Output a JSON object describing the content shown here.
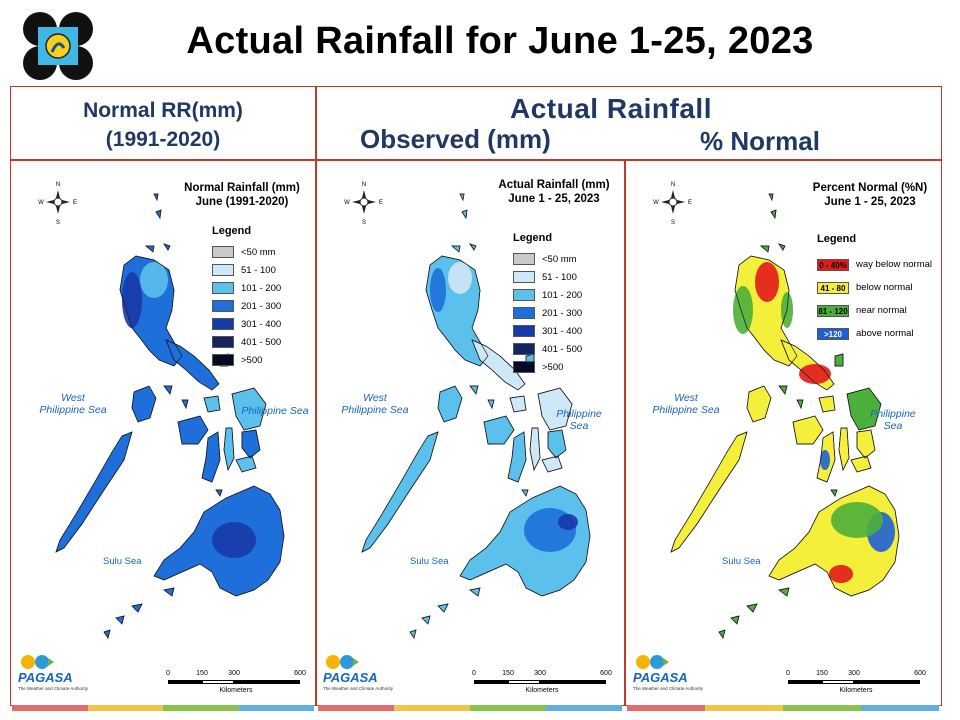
{
  "title": "Actual Rainfall for June 1-25, 2023",
  "headers": {
    "normal_line1": "Normal RR(mm)",
    "normal_line2": "(1991-2020)",
    "actual": "Actual Rainfall",
    "observed": "Observed (mm)",
    "percent": "% Normal"
  },
  "panels": [
    {
      "title_line1": "Normal Rainfall (mm)",
      "title_line2": "June (1991-2020)",
      "legend_heading": "Legend",
      "legend": [
        {
          "label": "<50 mm",
          "color": "#c9c9c9"
        },
        {
          "label": "51 - 100",
          "color": "#cfe8f7"
        },
        {
          "label": "101 - 200",
          "color": "#5bc0eb"
        },
        {
          "label": "201 - 300",
          "color": "#1e6fd9"
        },
        {
          "label": "301 - 400",
          "color": "#1839a8"
        },
        {
          "label": "401 - 500",
          "color": "#14245e"
        },
        {
          "label": ">500",
          "color": "#050a24"
        }
      ]
    },
    {
      "title_line1": "Actual Rainfall (mm)",
      "title_line2": "June 1 - 25, 2023",
      "legend_heading": "Legend",
      "legend": [
        {
          "label": "<50 mm",
          "color": "#c9c9c9"
        },
        {
          "label": "51 - 100",
          "color": "#cfe8f7"
        },
        {
          "label": "101 - 200",
          "color": "#5bc0eb"
        },
        {
          "label": "201 - 300",
          "color": "#1e6fd9"
        },
        {
          "label": "301 - 400",
          "color": "#1839a8"
        },
        {
          "label": "401 - 500",
          "color": "#14245e"
        },
        {
          "label": ">500",
          "color": "#050a24"
        }
      ]
    },
    {
      "title_line1": "Percent Normal (%N)",
      "title_line2": "June 1 - 25, 2023",
      "legend_heading": "Legend",
      "legend": [
        {
          "swatch": "0 - 40%",
          "label": "way below normal",
          "color": "#e31a1c"
        },
        {
          "swatch": "41 - 80",
          "label": "below normal",
          "color": "#f3ef3b"
        },
        {
          "swatch": "81 - 120",
          "label": "near normal",
          "color": "#4caf3a"
        },
        {
          "swatch": ">120",
          "label": "above normal",
          "color": "#1f5fd6"
        }
      ]
    }
  ],
  "seas": {
    "west_line1": "West",
    "west_line2": "Philippine Sea",
    "east": "Philippine Sea",
    "sulu": "Sulu Sea"
  },
  "compass": {
    "n": "N",
    "s": "S",
    "e": "E",
    "w": "W"
  },
  "scale": {
    "ticks": [
      "0",
      "150",
      "300",
      "600"
    ],
    "unit": "Kilometers"
  },
  "brand": {
    "name": "PAGASA",
    "tagline": "The Weather and Climate Authority"
  },
  "colors": {
    "border": "#c0392b",
    "heading": "#1f3864",
    "sea_label": "#1565c0"
  }
}
